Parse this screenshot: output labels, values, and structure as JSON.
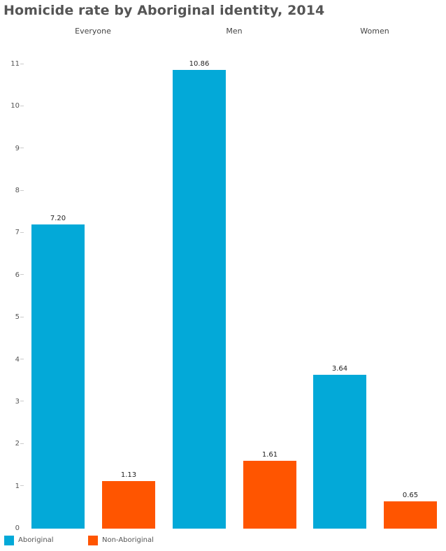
{
  "title": "Homicide rate by Aboriginal identity, 2014",
  "colors": {
    "aboriginal": "#03a9d8",
    "non_aboriginal": "#ff5500"
  },
  "groups": [
    "Everyone",
    "Men",
    "Women"
  ],
  "legend": [
    {
      "label": "Aboriginal",
      "color": "#03a9d8"
    },
    {
      "label": "Non-Aboriginal",
      "color": "#ff5500"
    }
  ],
  "y_ticks": [
    "0",
    "1",
    "2",
    "3",
    "4",
    "5",
    "6",
    "7",
    "8",
    "9",
    "10",
    "11"
  ],
  "bars": [
    {
      "group": "Everyone",
      "series": "Aboriginal",
      "value": 7.2,
      "label": "7.20"
    },
    {
      "group": "Everyone",
      "series": "Non-Aboriginal",
      "value": 1.13,
      "label": "1.13"
    },
    {
      "group": "Men",
      "series": "Aboriginal",
      "value": 10.86,
      "label": "10.86"
    },
    {
      "group": "Men",
      "series": "Non-Aboriginal",
      "value": 1.61,
      "label": "1.61"
    },
    {
      "group": "Women",
      "series": "Aboriginal",
      "value": 3.64,
      "label": "3.64"
    },
    {
      "group": "Women",
      "series": "Non-Aboriginal",
      "value": 0.65,
      "label": "0.65"
    }
  ],
  "chart_data": {
    "type": "bar",
    "title": "Homicide rate by Aboriginal identity, 2014",
    "categories": [
      "Everyone",
      "Men",
      "Women"
    ],
    "series": [
      {
        "name": "Aboriginal",
        "values": [
          7.2,
          10.86,
          3.64
        ],
        "color": "#03a9d8"
      },
      {
        "name": "Non-Aboriginal",
        "values": [
          1.13,
          1.61,
          0.65
        ],
        "color": "#ff5500"
      }
    ],
    "xlabel": "",
    "ylabel": "",
    "ylim": [
      0,
      11
    ],
    "yticks": [
      0,
      1,
      2,
      3,
      4,
      5,
      6,
      7,
      8,
      9,
      10,
      11
    ],
    "grid": false,
    "data_labels": true,
    "legend_position": "bottom-left"
  }
}
